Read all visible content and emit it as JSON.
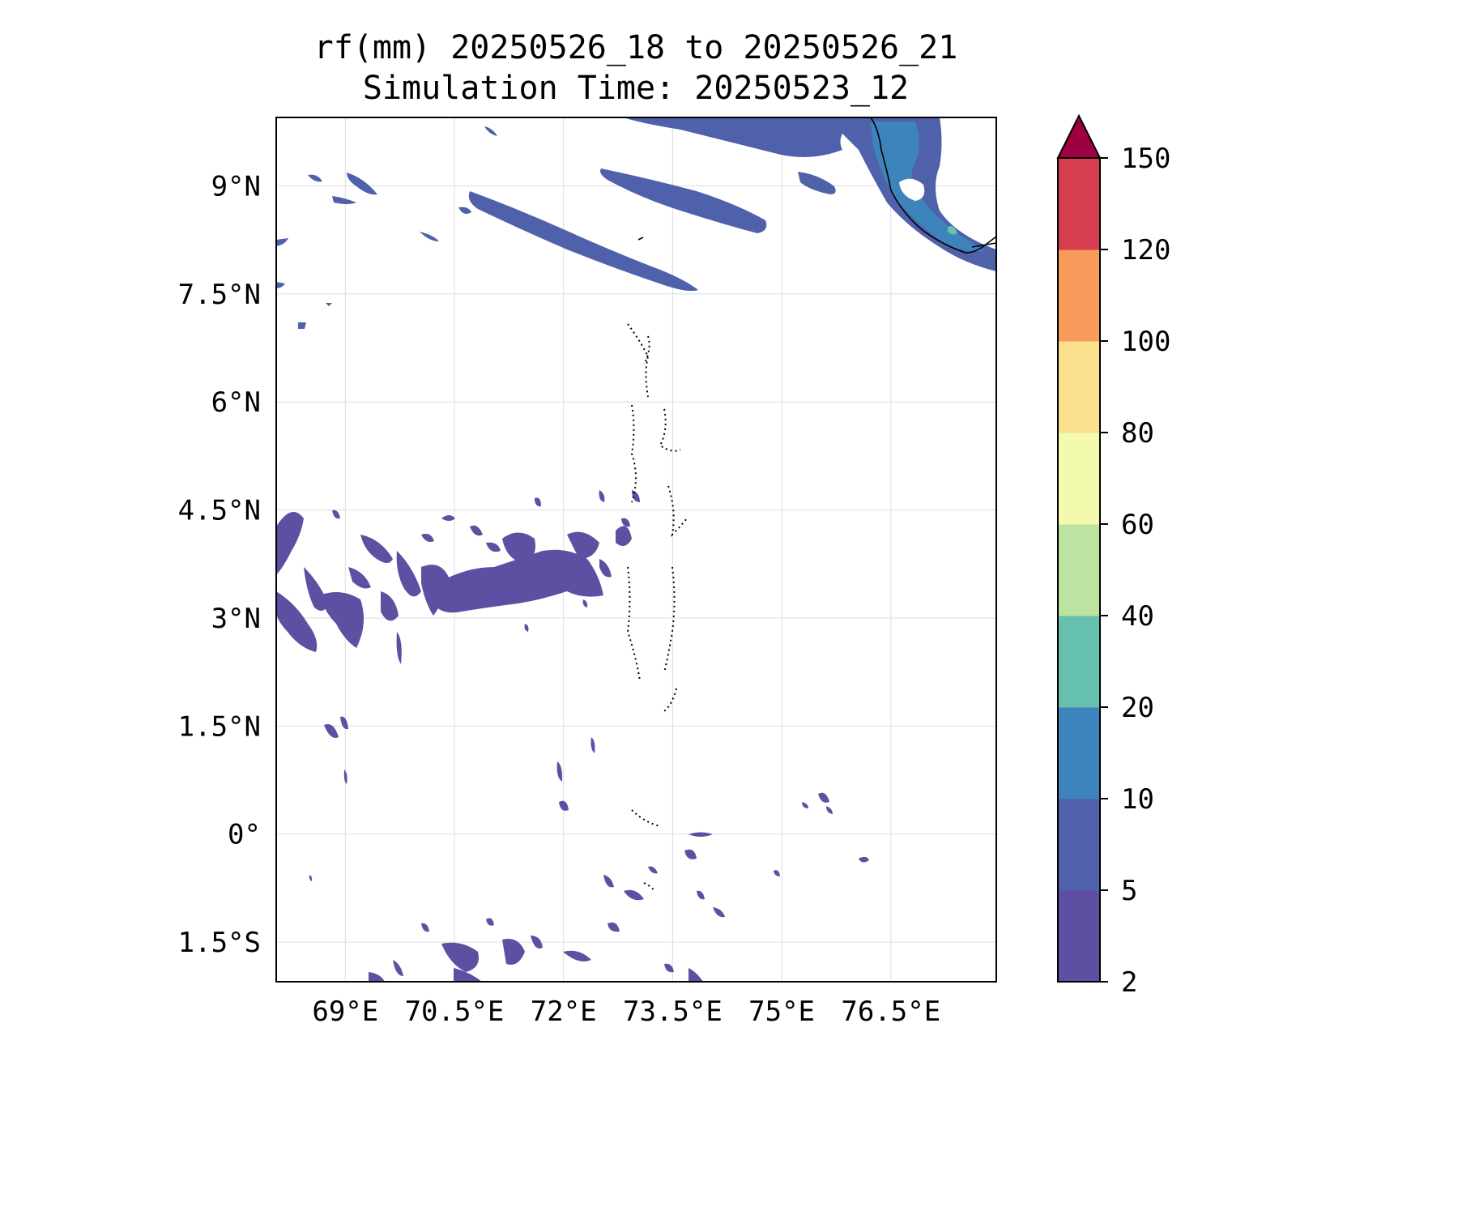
{
  "title_line1": "rf(mm) 20250526_18 to 20250526_21",
  "title_line2": "Simulation Time: 20250523_12",
  "lon_ticks": [
    {
      "label": "69°E",
      "value": 69.0
    },
    {
      "label": "70.5°E",
      "value": 70.5
    },
    {
      "label": "72°E",
      "value": 72.0
    },
    {
      "label": "73.5°E",
      "value": 73.5
    },
    {
      "label": "75°E",
      "value": 75.0
    },
    {
      "label": "76.5°E",
      "value": 76.5
    }
  ],
  "lat_ticks": [
    {
      "label": "9°N",
      "value": 9.0
    },
    {
      "label": "7.5°N",
      "value": 7.5
    },
    {
      "label": "6°N",
      "value": 6.0
    },
    {
      "label": "4.5°N",
      "value": 4.5
    },
    {
      "label": "3°N",
      "value": 3.0
    },
    {
      "label": "1.5°N",
      "value": 1.5
    },
    {
      "label": "0°",
      "value": 0.0
    },
    {
      "label": "1.5°S",
      "value": -1.5
    }
  ],
  "map_extent": {
    "lon_min": 68.05,
    "lon_max": 77.95,
    "lat_min": -2.05,
    "lat_max": 9.95
  },
  "grid": true,
  "colorbar": {
    "position": "right",
    "extend": "max",
    "levels": [
      "2",
      "5",
      "10",
      "20",
      "40",
      "60",
      "80",
      "100",
      "120",
      "150"
    ],
    "colors": [
      "#5e4fa2",
      "#4f61aa",
      "#3d84bc",
      "#65c0ae",
      "#bce4a0",
      "#f3faad",
      "#fbe08d",
      "#f99b5a",
      "#d53e4f"
    ],
    "extend_color": "#9e0142"
  },
  "land_color": "#ffffff",
  "coastline_color": "#000000",
  "ocean_color": "#ffffff"
}
